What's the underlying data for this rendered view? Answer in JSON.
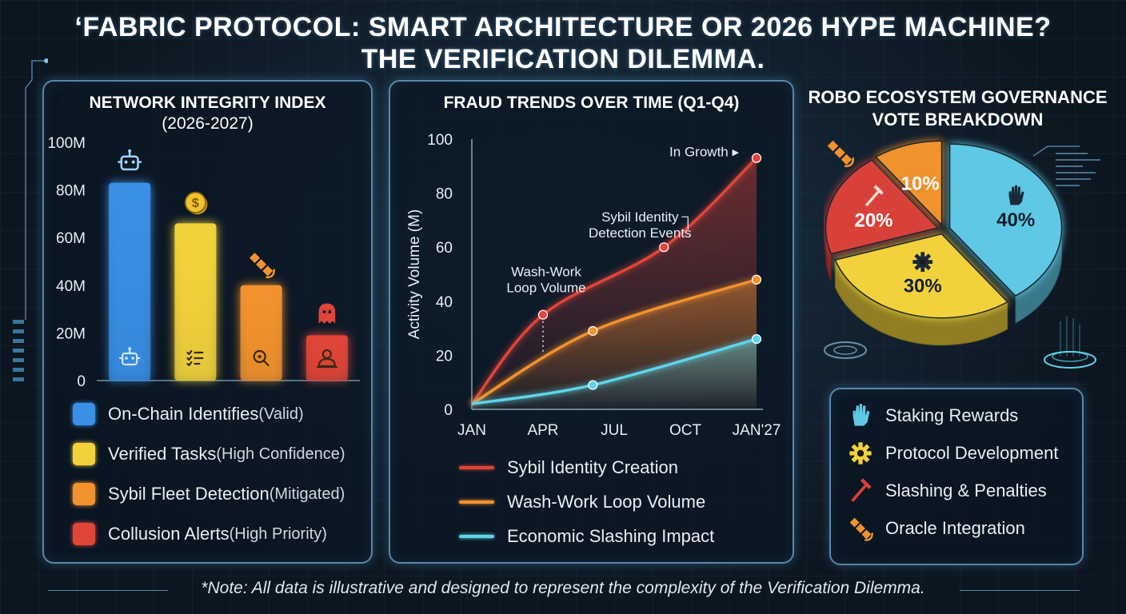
{
  "title": {
    "line1": "‘FABRIC PROTOCOL: SMART ARCHITECTURE OR 2026 HYPE MACHINE?",
    "line2": "THE VERIFICATION DILEMMA."
  },
  "note": "*Note: All data is illustrative and designed to represent the complexity of the Verification Dilemma.",
  "colors": {
    "blue": "#3a8fe6",
    "yellow": "#f2d23c",
    "orange": "#f2922e",
    "red": "#e0453a",
    "cyan": "#5fd4e8"
  },
  "chart_data": [
    {
      "type": "bar",
      "title_line1": "NETWORK INTEGRITY INDEX",
      "title_line2": "(2026-2027)",
      "categories": [
        "On-Chain Identifies (Valid)",
        "Verified Tasks (High Confidence)",
        "Sybil Fleet Detection (Mitigated)",
        "Collusion Alerts (High Priority)"
      ],
      "values": [
        83,
        66,
        40,
        19
      ],
      "ylim": [
        0,
        100
      ],
      "yticks": [
        0,
        20,
        40,
        60,
        80,
        100
      ],
      "ytick_labels": [
        "0",
        "20M",
        "40M",
        "60M",
        "80M",
        "100M"
      ],
      "legend": [
        {
          "name": "On-Chain Identifies",
          "qualifier": "(Valid)",
          "color": "#3a8fe6"
        },
        {
          "name": "Verified Tasks",
          "qualifier": "(High Confidence)",
          "color": "#f2d23c"
        },
        {
          "name": "Sybil Fleet Detection",
          "qualifier": "(Mitigated)",
          "color": "#f2922e"
        },
        {
          "name": "Collusion Alerts",
          "qualifier": "(High Priority)",
          "color": "#e0453a"
        }
      ],
      "icons": [
        "robot-icon",
        "coin-icon",
        "satellite-icon",
        "ghost-icon"
      ],
      "inner_icons": [
        "robot-icon",
        "checklist-icon",
        "magnifier-icon",
        "person-icon"
      ]
    },
    {
      "type": "line",
      "title": "FRAUD TRENDS OVER TIME (Q1-Q4)",
      "ylabel": "Activity Volume (M)",
      "xlim": [
        0,
        4
      ],
      "ylim": [
        0,
        100
      ],
      "yticks": [
        0,
        20,
        40,
        60,
        80,
        100
      ],
      "x_ticks": [
        0,
        1,
        2,
        3,
        4
      ],
      "x_tick_labels": [
        "JAN",
        "APR",
        "JUL",
        "OCT",
        "JAN'27"
      ],
      "series": [
        {
          "name": "Sybil Identity Creation",
          "color": "#e0453a",
          "x": [
            0,
            1,
            2.7,
            4
          ],
          "y": [
            2,
            35,
            60,
            93
          ]
        },
        {
          "name": "Wash-Work Loop Volume",
          "color": "#f2922e",
          "x": [
            0,
            1.7,
            4
          ],
          "y": [
            2,
            29,
            48
          ]
        },
        {
          "name": "Economic Slashing Impact",
          "color": "#5fd4e8",
          "x": [
            0,
            1.7,
            4
          ],
          "y": [
            2,
            9,
            26
          ]
        }
      ],
      "annotations": [
        {
          "text": "In Growth",
          "x": 4,
          "y": 93
        },
        {
          "text_line1": "Sybil Identity",
          "text_line2": "Detection Events",
          "x": 2.7,
          "y": 60
        },
        {
          "text_line1": "Wash-Work",
          "text_line2": "Loop Volume",
          "x": 1,
          "y": 35
        }
      ]
    },
    {
      "type": "pie",
      "title_line1": "ROBO ECOSYSTEM GOVERNANCE",
      "title_line2": "VOTE BREAKDOWN",
      "slices": [
        {
          "label": "Staking Rewards",
          "value": 40,
          "display": "40%",
          "color": "#5fc8e4",
          "icon": "hand-icon"
        },
        {
          "label": "Protocol Development",
          "value": 30,
          "display": "30%",
          "color": "#f2d23c",
          "icon": "gear-icon"
        },
        {
          "label": "Slashing & Penalties",
          "value": 20,
          "display": "20%",
          "color": "#d8413a",
          "icon": "axe-icon"
        },
        {
          "label": "Oracle Integration",
          "value": 10,
          "display": "10%",
          "color": "#f0922e",
          "icon": "satellite-icon"
        }
      ]
    }
  ]
}
